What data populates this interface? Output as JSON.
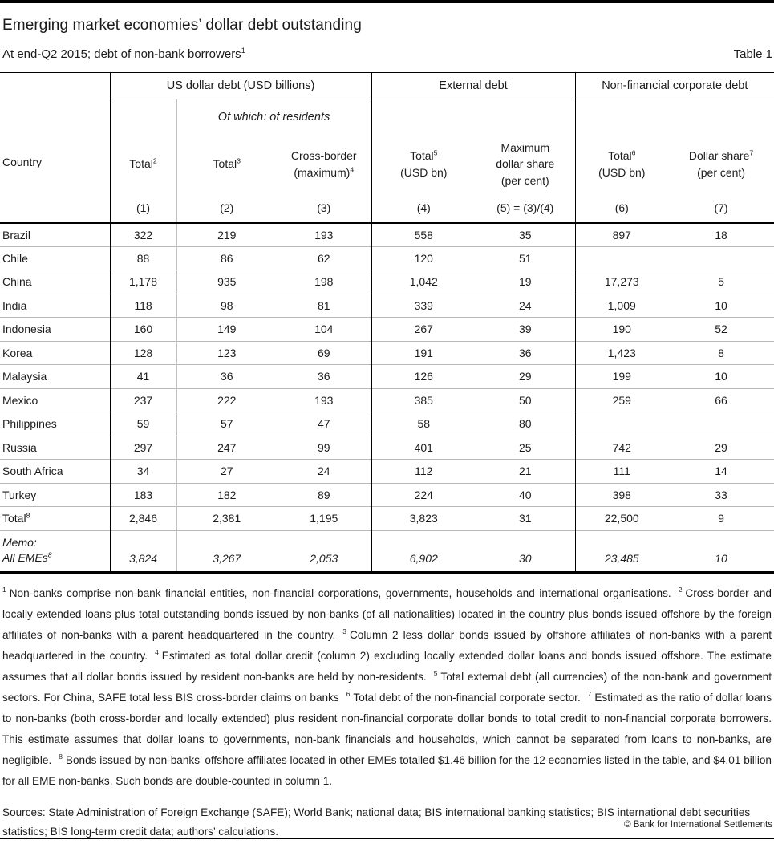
{
  "page": {
    "title": "Emerging market economies’ dollar debt outstanding",
    "subtitle": "At end-Q2 2015; debt of non-bank borrowers",
    "subtitle_sup": "1",
    "table_label": "Table 1",
    "copyright": "© Bank for International Settlements"
  },
  "table": {
    "country_header": "Country",
    "groups": [
      {
        "label": "US dollar debt (USD billions)"
      },
      {
        "label": "External debt"
      },
      {
        "label": "Non-financial corporate debt"
      }
    ],
    "subgroup": "Of which: of residents",
    "columns": [
      {
        "top": "Total",
        "sup": "2",
        "bottom": ""
      },
      {
        "top": "Total",
        "sup": "3",
        "bottom": ""
      },
      {
        "top": "Cross-border",
        "sup": "4",
        "bottom": "(maximum)"
      },
      {
        "top": "Total",
        "sup": "5",
        "bottom": "(USD bn)"
      },
      {
        "top": "Maximum",
        "sup": "",
        "bottom": "dollar share\n(per cent)"
      },
      {
        "top": "Total",
        "sup": "6",
        "bottom": "(USD bn)"
      },
      {
        "top": "Dollar share",
        "sup": "7",
        "bottom": "(per cent)"
      }
    ],
    "column_numbers": [
      "(1)",
      "(2)",
      "(3)",
      "(4)",
      "(5) = (3)/(4)",
      "(6)",
      "(7)"
    ],
    "rows": [
      {
        "country": "Brazil",
        "sup": "",
        "values": [
          "322",
          "219",
          "193",
          "558",
          "35",
          "897",
          "18"
        ]
      },
      {
        "country": "Chile",
        "sup": "",
        "values": [
          "88",
          "86",
          "62",
          "120",
          "51",
          "",
          ""
        ]
      },
      {
        "country": "China",
        "sup": "",
        "values": [
          "1,178",
          "935",
          "198",
          "1,042",
          "19",
          "17,273",
          "5"
        ]
      },
      {
        "country": "India",
        "sup": "",
        "values": [
          "118",
          "98",
          "81",
          "339",
          "24",
          "1,009",
          "10"
        ]
      },
      {
        "country": "Indonesia",
        "sup": "",
        "values": [
          "160",
          "149",
          "104",
          "267",
          "39",
          "190",
          "52"
        ]
      },
      {
        "country": "Korea",
        "sup": "",
        "values": [
          "128",
          "123",
          "69",
          "191",
          "36",
          "1,423",
          "8"
        ]
      },
      {
        "country": "Malaysia",
        "sup": "",
        "values": [
          "41",
          "36",
          "36",
          "126",
          "29",
          "199",
          "10"
        ]
      },
      {
        "country": "Mexico",
        "sup": "",
        "values": [
          "237",
          "222",
          "193",
          "385",
          "50",
          "259",
          "66"
        ]
      },
      {
        "country": "Philippines",
        "sup": "",
        "values": [
          "59",
          "57",
          "47",
          "58",
          "80",
          "",
          ""
        ]
      },
      {
        "country": "Russia",
        "sup": "",
        "values": [
          "297",
          "247",
          "99",
          "401",
          "25",
          "742",
          "29"
        ]
      },
      {
        "country": "South Africa",
        "sup": "",
        "values": [
          "34",
          "27",
          "24",
          "112",
          "21",
          "111",
          "14"
        ]
      },
      {
        "country": "Turkey",
        "sup": "",
        "values": [
          "183",
          "182",
          "89",
          "224",
          "40",
          "398",
          "33"
        ]
      },
      {
        "country": "Total",
        "sup": "8",
        "values": [
          "2,846",
          "2,381",
          "1,195",
          "3,823",
          "31",
          "22,500",
          "9"
        ]
      }
    ],
    "memo_row": {
      "line1": "Memo:",
      "line2": "All EMEs",
      "sup": "8",
      "values": [
        "3,824",
        "3,267",
        "2,053",
        "6,902",
        "30",
        "23,485",
        "10"
      ]
    }
  },
  "footnotes": [
    {
      "sup": "1",
      "text": "Non-banks comprise non-bank financial entities, non-financial corporations, governments, households and international organisations."
    },
    {
      "sup": "2",
      "text": "Cross-border and locally extended loans plus total outstanding bonds issued by non-banks (of all nationalities) located in the country plus bonds issued offshore by the foreign affiliates of non-banks with a parent headquartered in the country."
    },
    {
      "sup": "3",
      "text": "Column 2 less dollar bonds issued by offshore affiliates of non-banks with a parent headquartered in the country."
    },
    {
      "sup": "4",
      "text": "Estimated as total dollar credit (column 2) excluding locally extended dollar loans and bonds issued offshore. The estimate assumes that all dollar bonds issued by resident non-banks are held by non-residents."
    },
    {
      "sup": "5",
      "text": "Total external debt (all currencies) of the non-bank and government sectors. For China, SAFE total less BIS cross-border claims on banks"
    },
    {
      "sup": "6",
      "text": "Total debt of the non-financial corporate sector."
    },
    {
      "sup": "7",
      "text": "Estimated as the ratio of dollar loans to non-banks (both cross-border and locally extended) plus resident non-financial corporate dollar bonds to total credit to non-financial corporate borrowers. This estimate assumes that dollar loans to governments, non-bank financials and households, which cannot be separated from loans to non-banks, are negligible."
    },
    {
      "sup": "8",
      "text": "Bonds issued by non-banks’ offshore affiliates located in other EMEs totalled $1.46 billion for the 12 economies listed in the table, and $4.01 billion for all EME non-banks. Such bonds are double-counted in column 1."
    }
  ],
  "sources": "Sources: State Administration of Foreign Exchange (SAFE); World Bank; national data; BIS international banking statistics; BIS international debt securities statistics; BIS long-term credit data; authors’ calculations."
}
